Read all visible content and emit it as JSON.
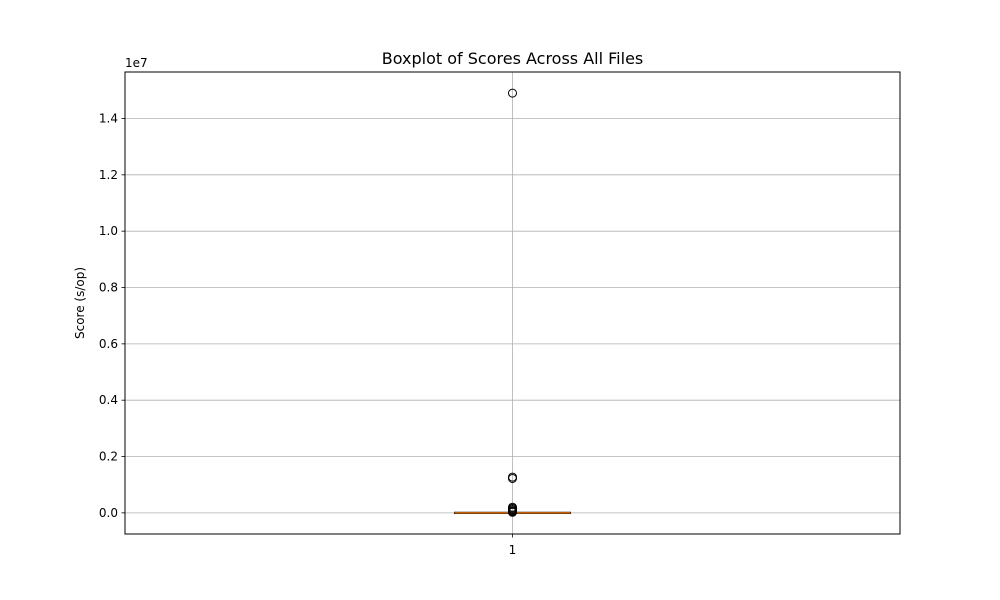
{
  "chart_data": {
    "type": "boxplot",
    "title": "Boxplot of Scores Across All Files",
    "xlabel": "",
    "ylabel": "Score (s/op)",
    "y_offset_label": "1e7",
    "y_multiplier": 10000000,
    "categories": [
      "1"
    ],
    "ylim": [
      -0.075,
      1.565
    ],
    "yticks": [
      0.0,
      0.2,
      0.4,
      0.6,
      0.8,
      1.0,
      1.2,
      1.4
    ],
    "ytick_labels": [
      "0.0",
      "0.2",
      "0.4",
      "0.6",
      "0.8",
      "1.0",
      "1.2",
      "1.4"
    ],
    "grid": true,
    "boxes": [
      {
        "category": "1",
        "whisker_low": 0.0,
        "q1": 0.0,
        "median": 0.0,
        "q3": 0.0,
        "whisker_high": 0.0,
        "outliers": [
          1.49,
          0.127,
          0.122,
          0.02,
          0.016,
          0.012,
          0.008,
          0.005,
          0.002
        ]
      }
    ],
    "colors": {
      "box": "#000000",
      "median": "#ff7f0e",
      "grid": "#b0b0b0",
      "outlier_edge": "#000000"
    }
  }
}
